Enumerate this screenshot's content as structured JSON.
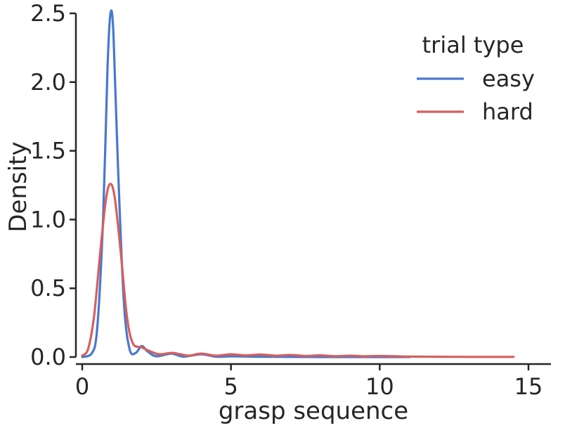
{
  "chart_data": {
    "type": "line",
    "xlabel": "grasp sequence",
    "ylabel": "Density",
    "xlim": [
      -0.3,
      16
    ],
    "ylim": [
      0,
      2.5
    ],
    "xticks": [
      0,
      5,
      10,
      15
    ],
    "yticks": [
      0.0,
      0.5,
      1.0,
      1.5,
      2.0,
      2.5
    ],
    "grid": false,
    "legend": {
      "title": "trial type",
      "placement": "top-right"
    },
    "series": [
      {
        "name": "easy",
        "color": "#4878cf",
        "points": [
          [
            0.0,
            0.0
          ],
          [
            0.3,
            0.02
          ],
          [
            0.5,
            0.2
          ],
          [
            0.7,
            1.0
          ],
          [
            0.85,
            2.1
          ],
          [
            0.95,
            2.5
          ],
          [
            1.05,
            2.35
          ],
          [
            1.2,
            1.4
          ],
          [
            1.4,
            0.4
          ],
          [
            1.6,
            0.05
          ],
          [
            1.8,
            0.03
          ],
          [
            2.0,
            0.08
          ],
          [
            2.2,
            0.04
          ],
          [
            2.5,
            0.005
          ],
          [
            3.0,
            0.025
          ],
          [
            3.4,
            0.003
          ],
          [
            4.0,
            0.02
          ],
          [
            4.5,
            0.002
          ],
          [
            5.0,
            0.005
          ],
          [
            6.0,
            0.002
          ],
          [
            8.0,
            0.0
          ],
          [
            11.0,
            0.0
          ]
        ]
      },
      {
        "name": "hard",
        "color": "#d65f5f",
        "points": [
          [
            0.0,
            0.01
          ],
          [
            0.2,
            0.06
          ],
          [
            0.4,
            0.3
          ],
          [
            0.6,
            0.75
          ],
          [
            0.8,
            1.15
          ],
          [
            0.95,
            1.26
          ],
          [
            1.1,
            1.15
          ],
          [
            1.3,
            0.75
          ],
          [
            1.5,
            0.3
          ],
          [
            1.7,
            0.1
          ],
          [
            2.0,
            0.07
          ],
          [
            2.3,
            0.04
          ],
          [
            2.6,
            0.02
          ],
          [
            3.0,
            0.03
          ],
          [
            3.3,
            0.02
          ],
          [
            3.6,
            0.01
          ],
          [
            4.0,
            0.025
          ],
          [
            4.5,
            0.01
          ],
          [
            5.0,
            0.02
          ],
          [
            5.5,
            0.012
          ],
          [
            6.0,
            0.018
          ],
          [
            6.5,
            0.01
          ],
          [
            7.0,
            0.015
          ],
          [
            7.5,
            0.008
          ],
          [
            8.0,
            0.012
          ],
          [
            8.5,
            0.006
          ],
          [
            9.0,
            0.01
          ],
          [
            9.5,
            0.005
          ],
          [
            10.0,
            0.008
          ],
          [
            11.0,
            0.003
          ],
          [
            12.0,
            0.002
          ],
          [
            13.0,
            0.001
          ],
          [
            14.5,
            0.001
          ]
        ]
      }
    ]
  }
}
